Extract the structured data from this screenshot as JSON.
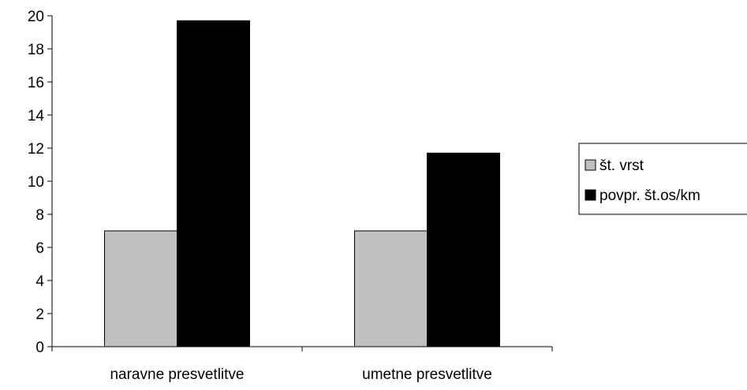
{
  "chart_data": {
    "type": "bar",
    "categories": [
      "naravne presvetlitve",
      "umetne presvetlitve"
    ],
    "series": [
      {
        "name": "št. vrst",
        "values": [
          7,
          7
        ],
        "color": "#c0c0c0"
      },
      {
        "name": "povpr. št.os/km",
        "values": [
          19.7,
          11.7
        ],
        "color": "#000000"
      }
    ],
    "ylim": [
      0,
      20
    ],
    "yticks": [
      "0",
      "2",
      "4",
      "6",
      "8",
      "10",
      "12",
      "14",
      "16",
      "18",
      "20"
    ],
    "grid": false,
    "legend_position": "right"
  }
}
